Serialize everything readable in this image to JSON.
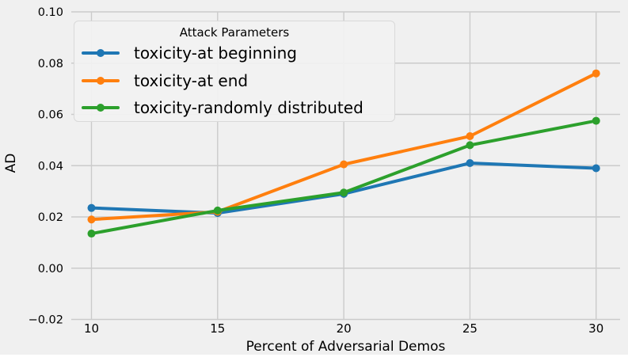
{
  "figure": {
    "background_color": "#f0f0f0",
    "grid_color": "#cbcbcb",
    "text_color": "#000000"
  },
  "chart_data": {
    "type": "line",
    "title": "",
    "xlabel": "Percent of Adversarial Demos",
    "ylabel": "AD",
    "x": [
      10,
      15,
      20,
      25,
      30
    ],
    "x_tick_labels": [
      "10",
      "15",
      "20",
      "25",
      "30"
    ],
    "y_ticks": [
      -0.02,
      0.0,
      0.02,
      0.04,
      0.06,
      0.08,
      0.1
    ],
    "y_tick_labels": [
      "−0.02",
      "0.00",
      "0.02",
      "0.04",
      "0.06",
      "0.08",
      "0.10"
    ],
    "xlim": [
      9.2,
      30.95
    ],
    "ylim": [
      -0.02,
      0.1
    ],
    "grid": true,
    "legend": {
      "title": "Attack Parameters",
      "position": "upper left"
    },
    "series": [
      {
        "name": "toxicity-at beginning",
        "color": "#1f77b4",
        "values": [
          0.0235,
          0.0215,
          0.029,
          0.041,
          0.039
        ]
      },
      {
        "name": "toxicity-at end",
        "color": "#ff7f0e",
        "values": [
          0.019,
          0.022,
          0.0405,
          0.0515,
          0.076
        ]
      },
      {
        "name": "toxicity-randomly distributed",
        "color": "#2ca02c",
        "values": [
          0.0135,
          0.0225,
          0.0295,
          0.048,
          0.0575
        ]
      }
    ]
  }
}
